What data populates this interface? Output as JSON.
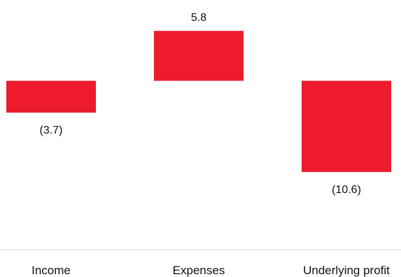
{
  "chart_data": {
    "type": "bar",
    "variant": "waterfall",
    "categories": [
      "Income",
      "Expenses",
      "Underlying profit"
    ],
    "values": [
      -3.7,
      5.8,
      -10.6
    ],
    "value_labels": [
      "(3.7)",
      "5.8",
      "(10.6)"
    ],
    "title": "",
    "xlabel": "",
    "ylabel": "",
    "grid": false,
    "legend": "none",
    "bar_color": "#ed1c2c",
    "baseline_color": "#d9d9d9",
    "text_color": "#111111"
  }
}
